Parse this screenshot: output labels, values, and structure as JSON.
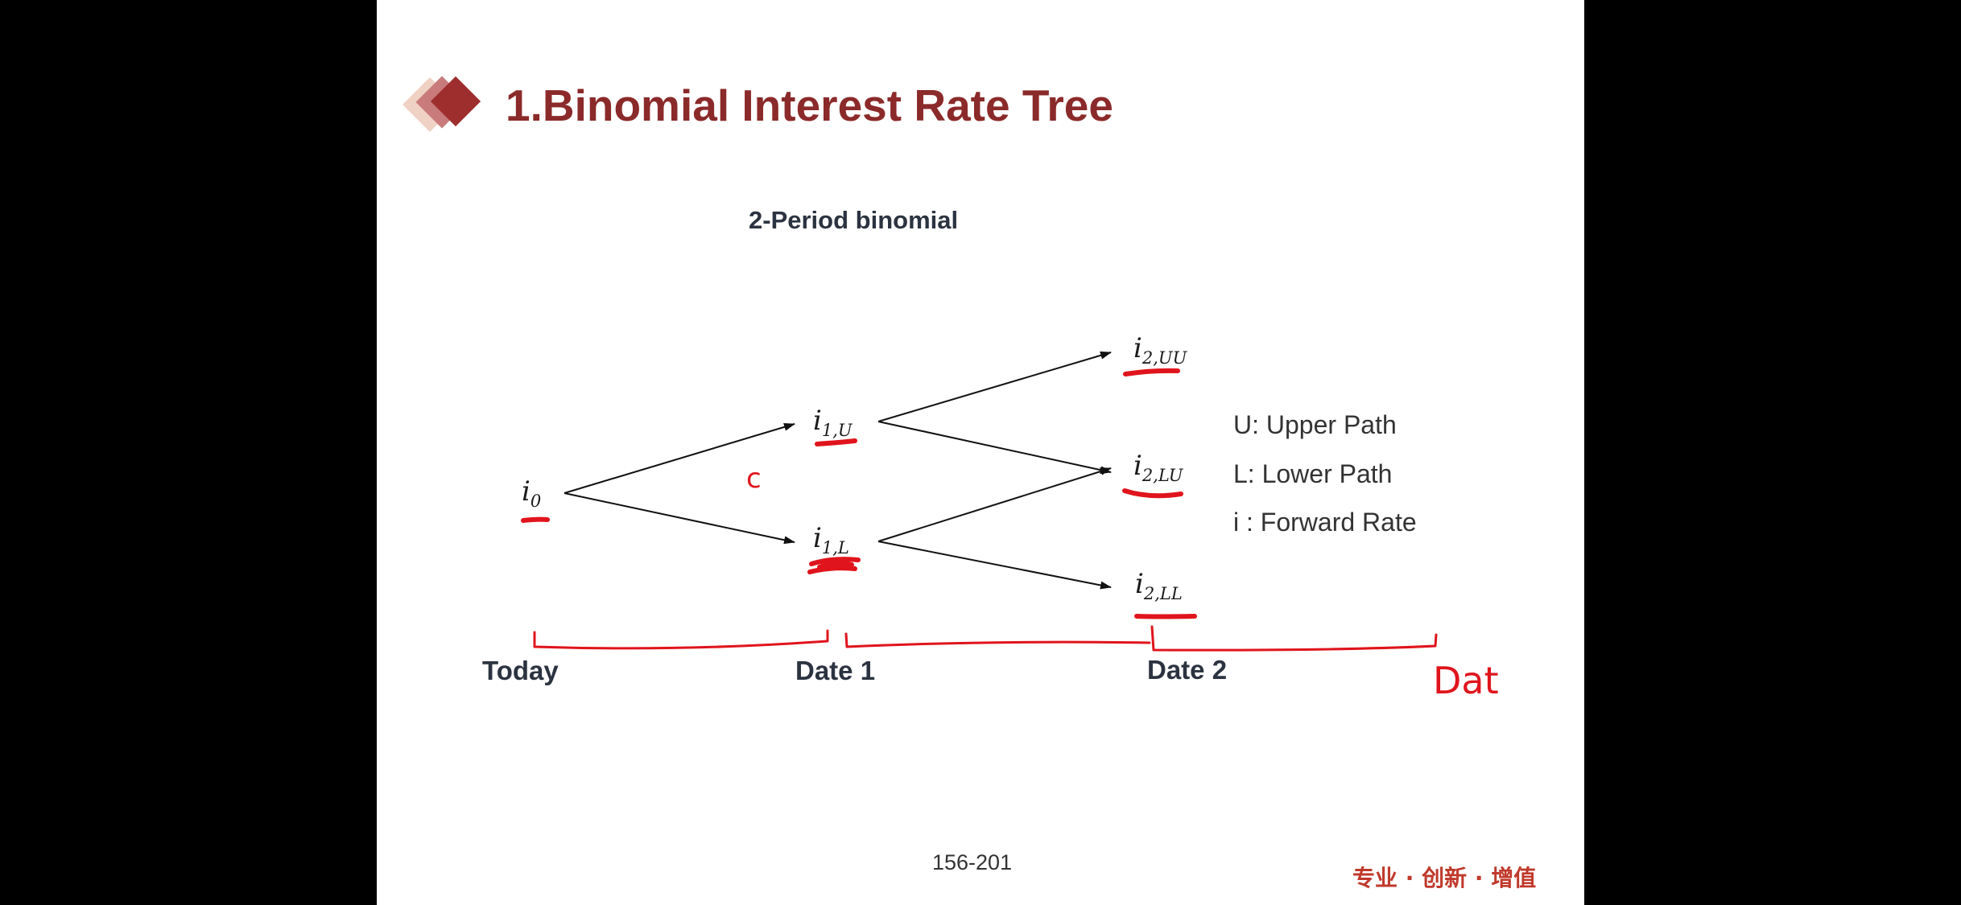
{
  "slide": {
    "title": "1.Binomial Interest Rate Tree",
    "subtitle": "2-Period binomial",
    "page_number": "156-201",
    "brand_footer": "专业 · 创新 · 增值"
  },
  "tree": {
    "nodes": [
      {
        "id": "i0",
        "base": "i",
        "sub": "0"
      },
      {
        "id": "i1U",
        "base": "i",
        "sub": "1,U"
      },
      {
        "id": "i1L",
        "base": "i",
        "sub": "1,L"
      },
      {
        "id": "i2UU",
        "base": "i",
        "sub": "2,UU"
      },
      {
        "id": "i2LU",
        "base": "i",
        "sub": "2,LU"
      },
      {
        "id": "i2LL",
        "base": "i",
        "sub": "2,LL"
      }
    ],
    "edges": [
      [
        "i0",
        "i1U"
      ],
      [
        "i0",
        "i1L"
      ],
      [
        "i1U",
        "i2UU"
      ],
      [
        "i1U",
        "i2LU"
      ],
      [
        "i1L",
        "i2LU"
      ],
      [
        "i1L",
        "i2LL"
      ]
    ]
  },
  "timeline": {
    "labels": [
      "Today",
      "Date 1",
      "Date 2"
    ]
  },
  "legend": {
    "items": [
      "U: Upper Path",
      "L: Lower Path",
      "i : Forward Rate"
    ]
  },
  "annotations": {
    "handwritten_note": "Dat",
    "handwritten_mark": "c",
    "ink_color": "#e0141c"
  },
  "colors": {
    "title": "#8b2a2a",
    "text_dark": "#2b3340",
    "diamond_dark": "#9e2e2e",
    "diamond_mid": "#c97b7b",
    "diamond_light": "#efd2c4"
  }
}
